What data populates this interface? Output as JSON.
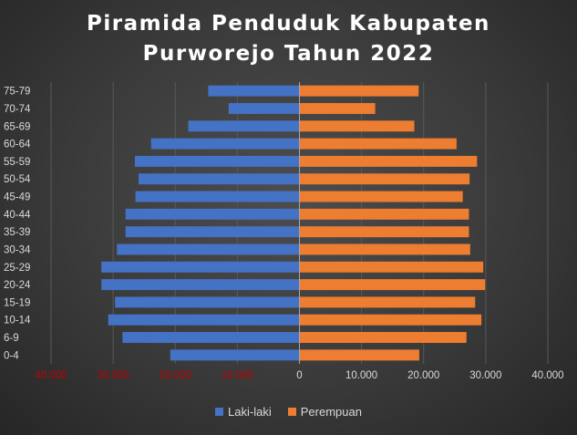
{
  "chart_data": {
    "type": "bar",
    "orientation": "horizontal",
    "layout": "population-pyramid",
    "title_lines": [
      "Piramida Penduduk Kabupaten",
      "Purworejo Tahun 2022"
    ],
    "categories": [
      "0-4",
      "6-9",
      "10-14",
      "15-19",
      "20-24",
      "25-29",
      "30-34",
      "35-39",
      "40-44",
      "45-49",
      "50-54",
      "55-59",
      "60-64",
      "65-69",
      "70-74",
      "75-79"
    ],
    "series": [
      {
        "name": "Laki-laki",
        "color": "#4472c4",
        "values": [
          20800,
          28500,
          30800,
          29700,
          31900,
          31900,
          29400,
          28000,
          28000,
          26400,
          25900,
          26500,
          23900,
          17900,
          11400,
          14700
        ]
      },
      {
        "name": "Perempuan",
        "color": "#ed7d31",
        "values": [
          19300,
          26900,
          29300,
          28300,
          29900,
          29600,
          27500,
          27300,
          27300,
          26300,
          27400,
          28600,
          25300,
          18500,
          12200,
          19200
        ]
      }
    ],
    "xlim": [
      -40000,
      40000
    ],
    "x_ticks": [
      {
        "value": -40000,
        "label": "40.000",
        "color": "#c00000"
      },
      {
        "value": -30000,
        "label": "30.000",
        "color": "#c00000"
      },
      {
        "value": -20000,
        "label": "20.000",
        "color": "#c00000"
      },
      {
        "value": -10000,
        "label": "10.000",
        "color": "#c00000"
      },
      {
        "value": 0,
        "label": "0",
        "color": "#d9d9d9"
      },
      {
        "value": 10000,
        "label": "10.000",
        "color": "#d9d9d9"
      },
      {
        "value": 20000,
        "label": "20.000",
        "color": "#d9d9d9"
      },
      {
        "value": 30000,
        "label": "30.000",
        "color": "#d9d9d9"
      },
      {
        "value": 40000,
        "label": "40.000",
        "color": "#d9d9d9"
      }
    ],
    "grid": "vertical",
    "legend_position": "bottom"
  }
}
